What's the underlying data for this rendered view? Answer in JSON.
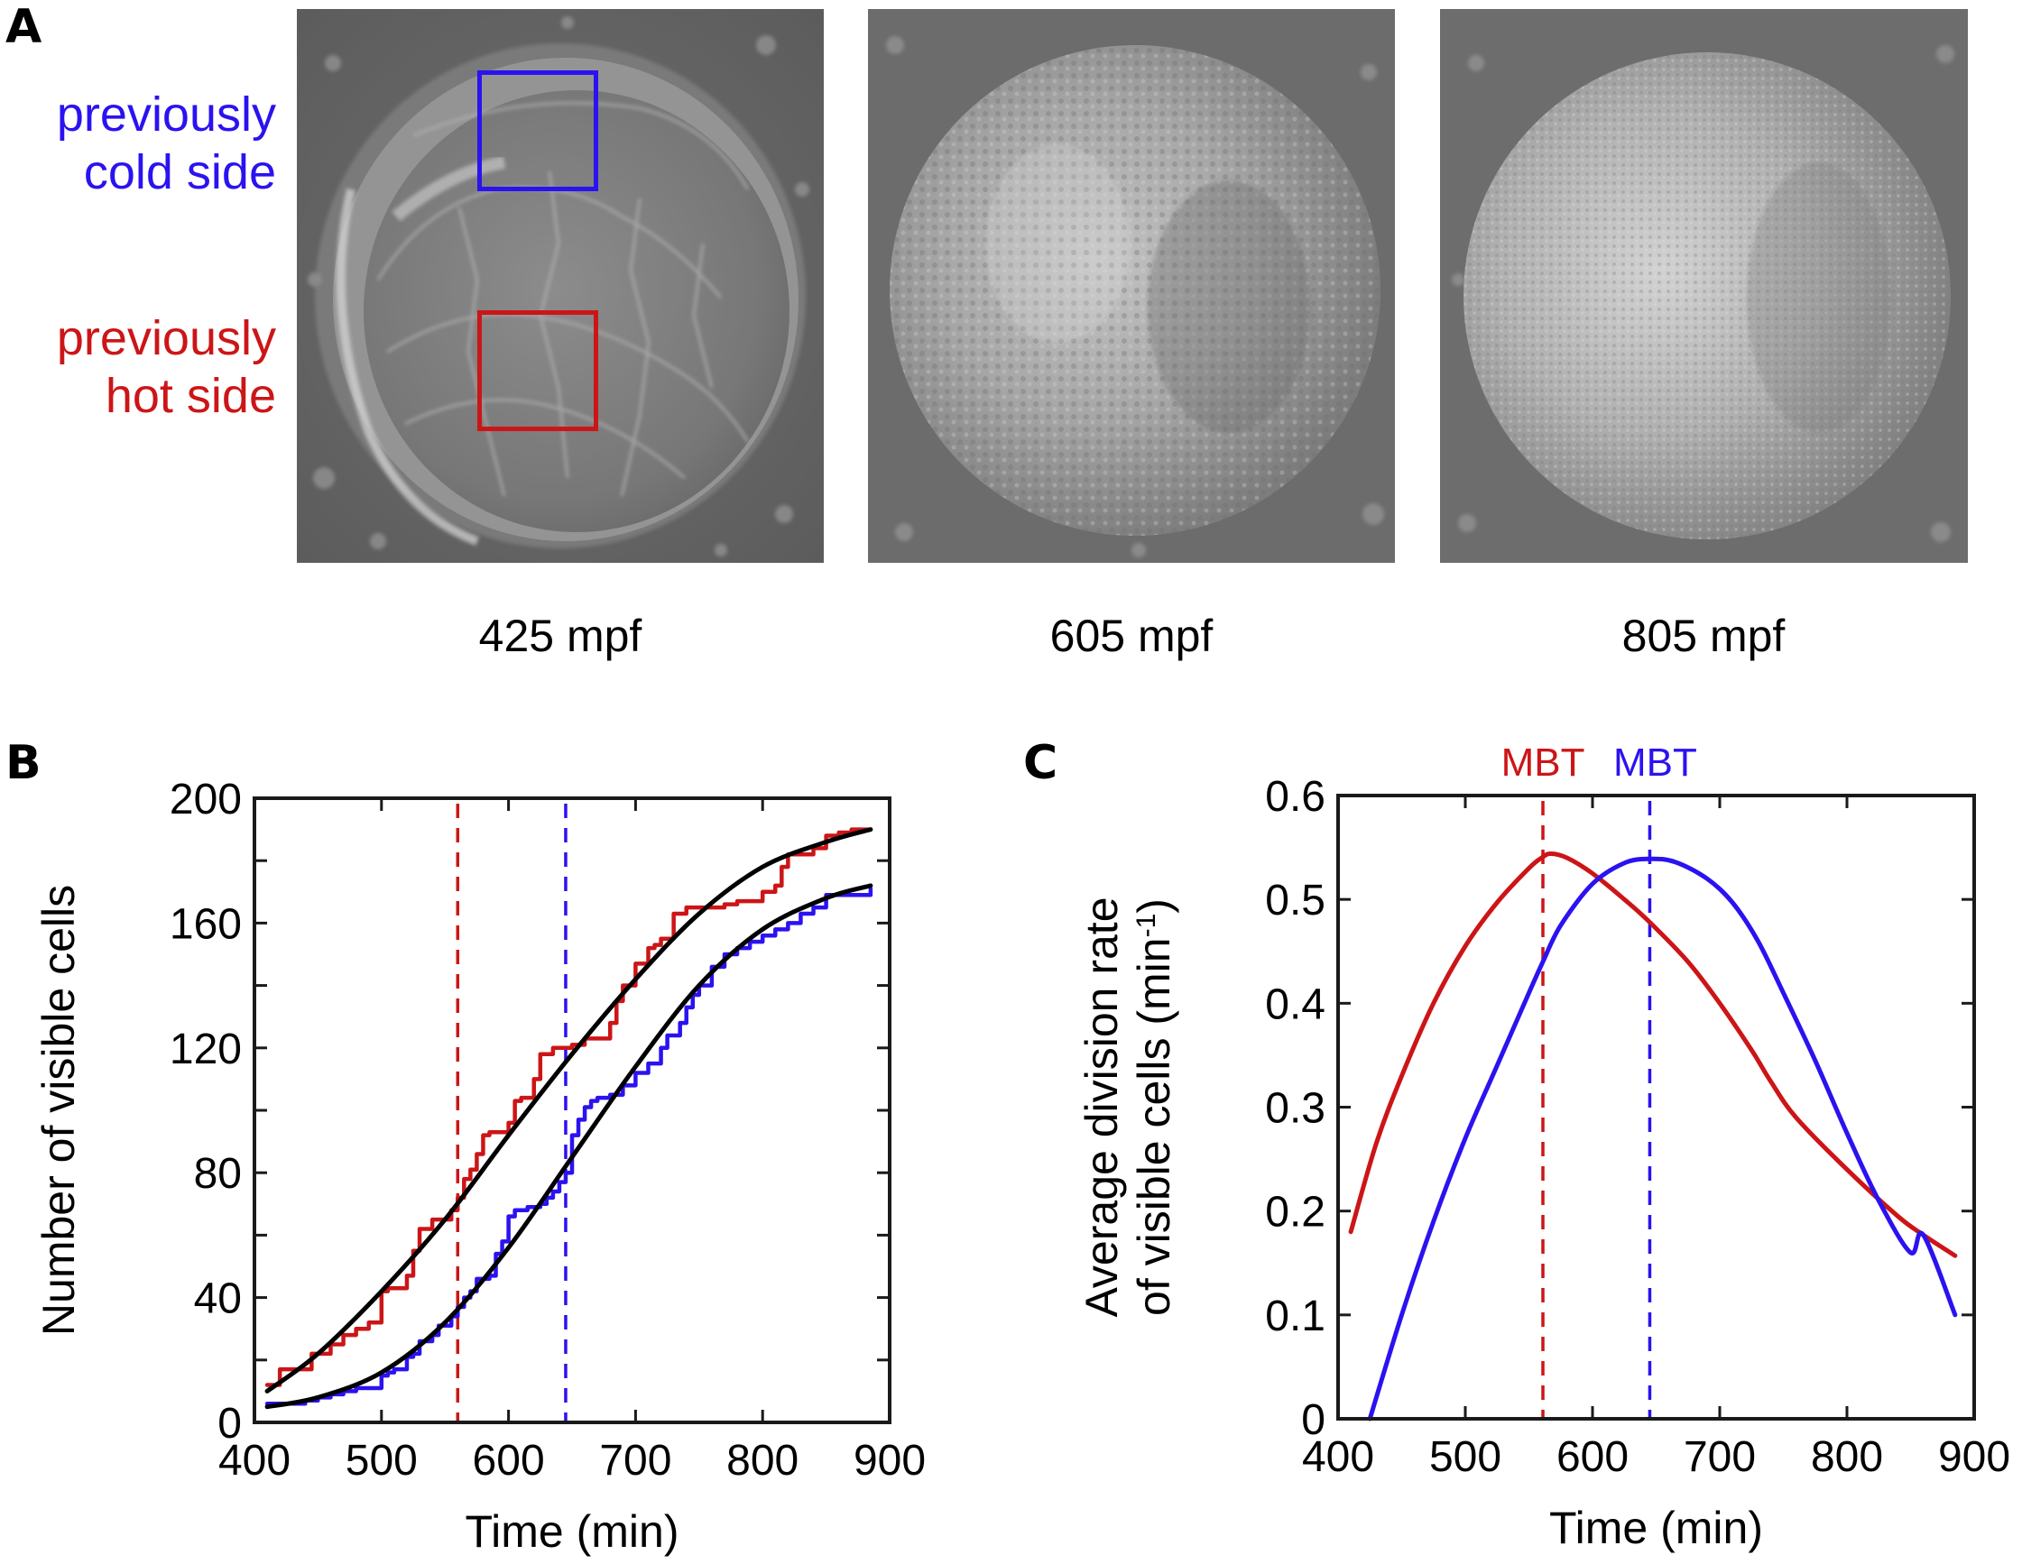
{
  "figure": {
    "panels": {
      "A": {
        "letter": "A",
        "cold_label": [
          "previously",
          "cold side"
        ],
        "hot_label": [
          "previously",
          "hot side"
        ],
        "cold_color": "#2b12f0",
        "hot_color": "#cc1517",
        "images": [
          {
            "caption": "425 mpf",
            "stage": "cleavage-stage embryo with large blastomeres",
            "has_roi_boxes": true
          },
          {
            "caption": "605 mpf",
            "stage": "blastula with many small cells",
            "has_roi_boxes": false
          },
          {
            "caption": "805 mpf",
            "stage": "late blastula, finer texture",
            "has_roi_boxes": false
          }
        ]
      },
      "B": {
        "letter": "B"
      },
      "C": {
        "letter": "C"
      }
    }
  },
  "chart_data": [
    {
      "id": "B",
      "type": "line",
      "title": "",
      "xlabel": "Time (min)",
      "ylabel": "Number of visible cells",
      "xlim": [
        400,
        900
      ],
      "ylim": [
        0,
        200
      ],
      "xticks": [
        400,
        500,
        600,
        700,
        800,
        900
      ],
      "yticks": [
        0,
        40,
        80,
        120,
        160,
        200
      ],
      "yticks_minor": [
        20,
        60,
        100,
        140,
        180
      ],
      "grid": false,
      "legend": "none",
      "vlines": [
        {
          "x": 560,
          "color": "#cc1517",
          "style": "dashed",
          "meaning": "MBT previously hot side"
        },
        {
          "x": 645,
          "color": "#2b12f0",
          "style": "dashed",
          "meaning": "MBT previously cold side"
        }
      ],
      "series": [
        {
          "name": "previously hot side (counts)",
          "color": "#cc1517",
          "style": "step",
          "x": [
            410,
            415,
            420,
            440,
            445,
            455,
            460,
            470,
            480,
            490,
            495,
            500,
            505,
            510,
            520,
            525,
            530,
            540,
            545,
            555,
            560,
            565,
            570,
            575,
            580,
            585,
            590,
            600,
            605,
            610,
            620,
            625,
            630,
            635,
            645,
            650,
            660,
            670,
            680,
            685,
            690,
            700,
            710,
            715,
            720,
            730,
            740,
            750,
            770,
            780,
            790,
            800,
            810,
            815,
            820,
            830,
            840,
            850,
            860,
            870,
            885
          ],
          "y": [
            12,
            12,
            17,
            17,
            22,
            22,
            25,
            28,
            30,
            32,
            32,
            42,
            43,
            43,
            47,
            55,
            62,
            65,
            65,
            68,
            72,
            78,
            81,
            86,
            92,
            93,
            93,
            96,
            103,
            104,
            110,
            118,
            118,
            120,
            120,
            121,
            123,
            123,
            128,
            135,
            140,
            147,
            152,
            153,
            155,
            163,
            165,
            165,
            166,
            167,
            167,
            170,
            172,
            178,
            182,
            182,
            184,
            188,
            189,
            190,
            190
          ]
        },
        {
          "name": "previously cold side (counts)",
          "color": "#2b12f0",
          "style": "step",
          "x": [
            410,
            420,
            440,
            450,
            460,
            470,
            480,
            490,
            495,
            500,
            505,
            510,
            520,
            525,
            530,
            540,
            545,
            555,
            560,
            565,
            570,
            575,
            585,
            590,
            595,
            600,
            605,
            615,
            625,
            630,
            635,
            640,
            645,
            650,
            655,
            660,
            665,
            670,
            680,
            690,
            700,
            710,
            720,
            725,
            735,
            740,
            745,
            750,
            760,
            770,
            780,
            790,
            800,
            810,
            820,
            830,
            840,
            850,
            860,
            870,
            885
          ],
          "y": [
            6,
            6,
            7,
            8,
            9,
            10,
            11,
            11,
            11,
            15,
            16,
            17,
            21,
            22,
            26,
            28,
            31,
            34,
            37,
            40,
            42,
            46,
            47,
            54,
            58,
            66,
            68,
            69,
            70,
            72,
            74,
            77,
            80,
            92,
            97,
            101,
            103,
            104,
            105,
            108,
            112,
            115,
            120,
            124,
            128,
            133,
            137,
            140,
            146,
            150,
            152,
            154,
            156,
            158,
            160,
            163,
            165,
            169,
            169,
            169,
            171
          ]
        },
        {
          "name": "fit hot side",
          "color": "#000000",
          "style": "smooth",
          "x": [
            410,
            450,
            500,
            550,
            600,
            650,
            700,
            750,
            800,
            850,
            885
          ],
          "y": [
            10,
            22,
            42,
            65,
            92,
            118,
            142,
            163,
            178,
            186,
            190
          ]
        },
        {
          "name": "fit cold side",
          "color": "#000000",
          "style": "smooth",
          "x": [
            410,
            450,
            500,
            550,
            600,
            650,
            700,
            750,
            800,
            850,
            885
          ],
          "y": [
            5,
            8,
            16,
            32,
            56,
            85,
            114,
            140,
            158,
            168,
            172
          ]
        }
      ]
    },
    {
      "id": "C",
      "type": "line",
      "title": "",
      "xlabel": "Time (min)",
      "ylabel_lines": [
        "Average division rate",
        "of visible cells (min"
      ],
      "ylabel_superscript": "-1",
      "ylabel_suffix": ")",
      "xlim": [
        400,
        900
      ],
      "ylim": [
        0,
        0.6
      ],
      "xticks": [
        400,
        500,
        600,
        700,
        800,
        900
      ],
      "yticks": [
        0,
        0.1,
        0.2,
        0.3,
        0.4,
        0.5,
        0.6
      ],
      "ytick_labels": [
        "0",
        "0.1",
        "0.2",
        "0.3",
        "0.4",
        "0.5",
        "0.6"
      ],
      "grid": false,
      "legend": "none",
      "vlines": [
        {
          "x": 561,
          "color": "#cc1517",
          "style": "dashed",
          "label": "MBT"
        },
        {
          "x": 645,
          "color": "#2b12f0",
          "style": "dashed",
          "label": "MBT"
        }
      ],
      "series": [
        {
          "name": "previously hot side",
          "color": "#cc1517",
          "x": [
            410,
            430,
            450,
            475,
            500,
            525,
            550,
            560,
            567,
            580,
            600,
            625,
            645,
            675,
            700,
            725,
            740,
            760,
            800,
            840,
            860,
            885
          ],
          "y": [
            0.18,
            0.265,
            0.33,
            0.4,
            0.455,
            0.497,
            0.53,
            0.54,
            0.544,
            0.54,
            0.525,
            0.5,
            0.478,
            0.44,
            0.4,
            0.355,
            0.325,
            0.29,
            0.24,
            0.195,
            0.177,
            0.157
          ]
        },
        {
          "name": "previously cold side",
          "color": "#2b12f0",
          "x": [
            425,
            450,
            475,
            500,
            525,
            550,
            561,
            575,
            600,
            625,
            645,
            665,
            690,
            710,
            730,
            750,
            775,
            800,
            825,
            850,
            860,
            885
          ],
          "y": [
            0.0,
            0.1,
            0.19,
            0.27,
            0.34,
            0.41,
            0.44,
            0.475,
            0.515,
            0.535,
            0.539,
            0.536,
            0.52,
            0.497,
            0.46,
            0.41,
            0.345,
            0.275,
            0.21,
            0.16,
            0.177,
            0.1
          ]
        }
      ]
    }
  ]
}
